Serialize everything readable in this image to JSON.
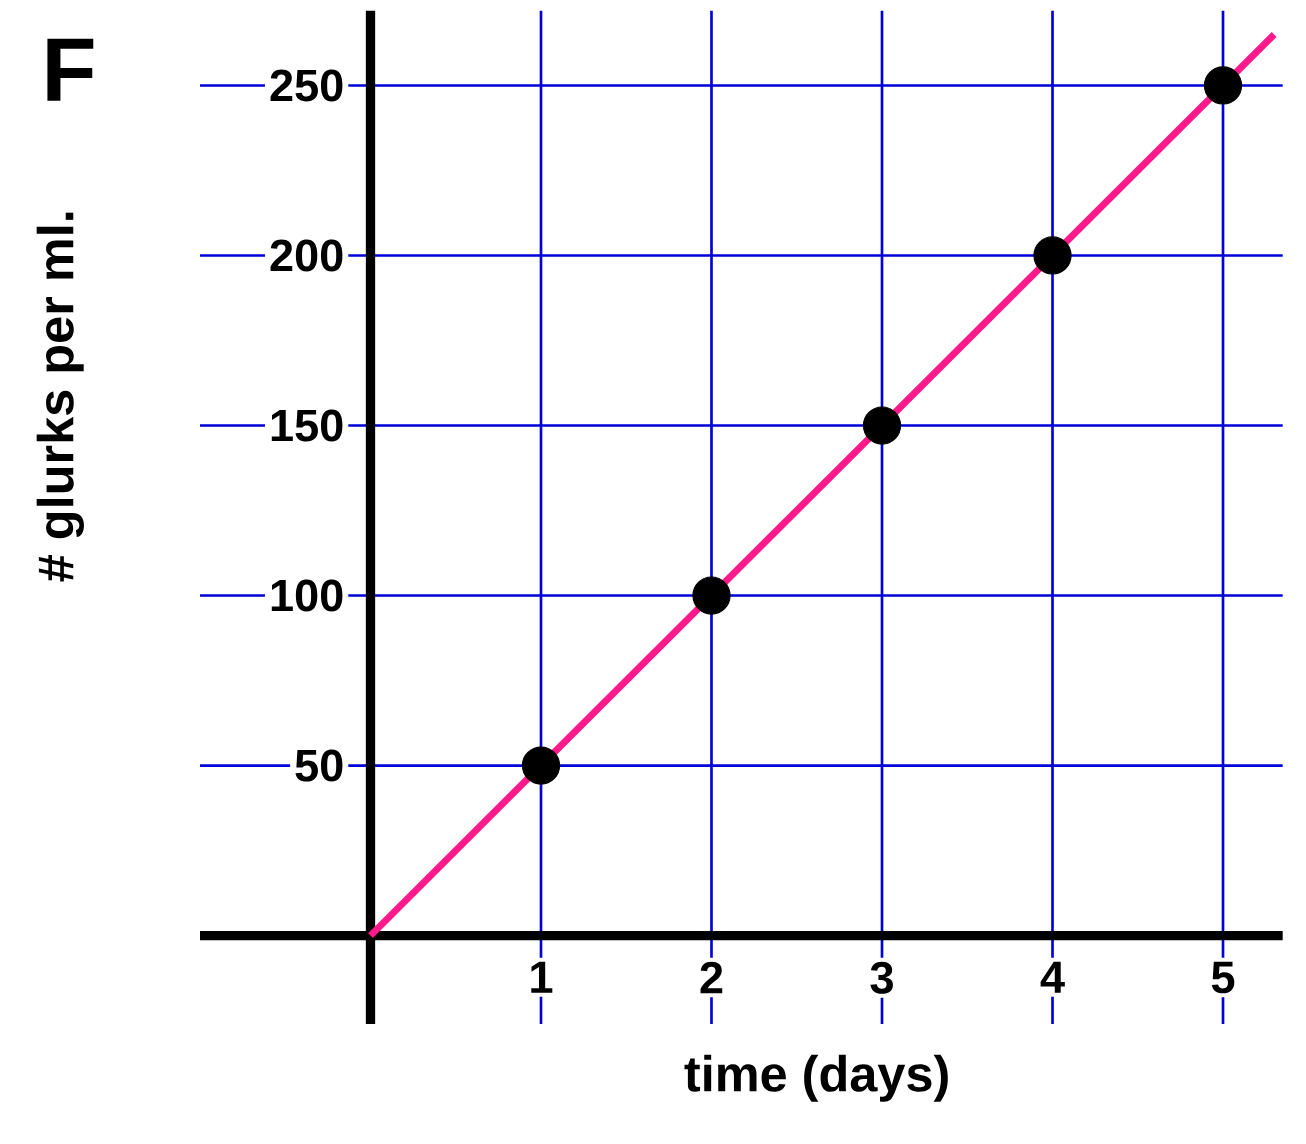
{
  "chart_data": {
    "type": "scatter",
    "title": "F",
    "xlabel": "time (days)",
    "ylabel": "# glurks per ml.",
    "xlim": [
      -1,
      5.35
    ],
    "ylim": [
      -26,
      272
    ],
    "xticks": [
      1,
      2,
      3,
      4,
      5
    ],
    "yticks": [
      50,
      100,
      150,
      200,
      250
    ],
    "grid": true,
    "marker": "circle",
    "series": [
      {
        "color": "#000000",
        "x": [
          1,
          2,
          3,
          4,
          5
        ],
        "values": [
          50,
          100,
          150,
          200,
          250
        ]
      },
      {
        "type": "line",
        "color": "#ff1a8c",
        "marker": "none",
        "line_style": "solid",
        "x": [
          0,
          5.3
        ],
        "values": [
          0,
          265
        ]
      }
    ]
  }
}
